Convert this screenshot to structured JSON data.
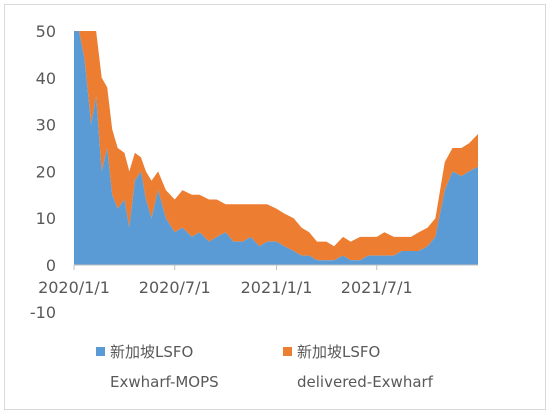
{
  "chart_data": {
    "type": "area",
    "stacked": true,
    "title": "",
    "xlabel": "",
    "ylabel": "",
    "ylim": [
      -10,
      50
    ],
    "yticks": [
      -10,
      0,
      10,
      20,
      30,
      40,
      50
    ],
    "xlim": [
      "2020-01-01",
      "2021-12-31"
    ],
    "xticks": [
      {
        "date": "2020-01-01",
        "label": "2020/1/1"
      },
      {
        "date": "2020-07-01",
        "label": "2020/7/1"
      },
      {
        "date": "2021-01-01",
        "label": "2021/1/1"
      },
      {
        "date": "2021-07-01",
        "label": "2021/7/1"
      }
    ],
    "grid": false,
    "legend": "bottom",
    "series": [
      {
        "name": "新加坡LSFO Exwharf-MOPS",
        "legend_lines": [
          "新加坡LSFO",
          "Exwharf-MOPS"
        ],
        "color": "#5B9BD5",
        "points": [
          [
            "2020-01-01",
            50
          ],
          [
            "2020-01-10",
            50
          ],
          [
            "2020-01-20",
            44
          ],
          [
            "2020-02-01",
            30
          ],
          [
            "2020-02-10",
            36
          ],
          [
            "2020-02-20",
            20
          ],
          [
            "2020-03-01",
            25
          ],
          [
            "2020-03-10",
            15
          ],
          [
            "2020-03-20",
            12
          ],
          [
            "2020-04-01",
            14
          ],
          [
            "2020-04-10",
            8
          ],
          [
            "2020-04-20",
            18
          ],
          [
            "2020-05-01",
            20
          ],
          [
            "2020-05-10",
            14
          ],
          [
            "2020-05-20",
            10
          ],
          [
            "2020-06-01",
            16
          ],
          [
            "2020-06-15",
            10
          ],
          [
            "2020-07-01",
            7
          ],
          [
            "2020-07-15",
            8
          ],
          [
            "2020-08-01",
            6
          ],
          [
            "2020-08-15",
            7
          ],
          [
            "2020-09-01",
            5
          ],
          [
            "2020-09-15",
            6
          ],
          [
            "2020-10-01",
            7
          ],
          [
            "2020-10-15",
            5
          ],
          [
            "2020-11-01",
            5
          ],
          [
            "2020-11-15",
            6
          ],
          [
            "2020-12-01",
            4
          ],
          [
            "2020-12-15",
            5
          ],
          [
            "2021-01-01",
            5
          ],
          [
            "2021-01-15",
            4
          ],
          [
            "2021-02-01",
            3
          ],
          [
            "2021-02-15",
            2
          ],
          [
            "2021-03-01",
            2
          ],
          [
            "2021-03-15",
            1
          ],
          [
            "2021-04-01",
            1
          ],
          [
            "2021-04-15",
            1
          ],
          [
            "2021-05-01",
            2
          ],
          [
            "2021-05-15",
            1
          ],
          [
            "2021-06-01",
            1
          ],
          [
            "2021-06-15",
            2
          ],
          [
            "2021-07-01",
            2
          ],
          [
            "2021-07-15",
            2
          ],
          [
            "2021-08-01",
            2
          ],
          [
            "2021-08-15",
            3
          ],
          [
            "2021-09-01",
            3
          ],
          [
            "2021-09-15",
            3
          ],
          [
            "2021-10-01",
            4
          ],
          [
            "2021-10-15",
            6
          ],
          [
            "2021-11-01",
            16
          ],
          [
            "2021-11-15",
            20
          ],
          [
            "2021-12-01",
            19
          ],
          [
            "2021-12-15",
            20
          ],
          [
            "2021-12-31",
            21
          ]
        ]
      },
      {
        "name": "新加坡LSFO delivered-Exwharf",
        "legend_lines": [
          "新加坡LSFO",
          "delivered-Exwharf"
        ],
        "color": "#ED7D31",
        "points": [
          [
            "2020-01-01",
            0
          ],
          [
            "2020-01-10",
            0
          ],
          [
            "2020-01-20",
            6
          ],
          [
            "2020-02-01",
            20
          ],
          [
            "2020-02-10",
            14
          ],
          [
            "2020-02-20",
            20
          ],
          [
            "2020-03-01",
            13
          ],
          [
            "2020-03-10",
            14
          ],
          [
            "2020-03-20",
            13
          ],
          [
            "2020-04-01",
            10
          ],
          [
            "2020-04-10",
            12
          ],
          [
            "2020-04-20",
            6
          ],
          [
            "2020-05-01",
            3
          ],
          [
            "2020-05-10",
            6
          ],
          [
            "2020-05-20",
            8
          ],
          [
            "2020-06-01",
            4
          ],
          [
            "2020-06-15",
            6
          ],
          [
            "2020-07-01",
            7
          ],
          [
            "2020-07-15",
            8
          ],
          [
            "2020-08-01",
            9
          ],
          [
            "2020-08-15",
            8
          ],
          [
            "2020-09-01",
            9
          ],
          [
            "2020-09-15",
            8
          ],
          [
            "2020-10-01",
            6
          ],
          [
            "2020-10-15",
            8
          ],
          [
            "2020-11-01",
            8
          ],
          [
            "2020-11-15",
            7
          ],
          [
            "2020-12-01",
            9
          ],
          [
            "2020-12-15",
            8
          ],
          [
            "2021-01-01",
            7
          ],
          [
            "2021-01-15",
            7
          ],
          [
            "2021-02-01",
            7
          ],
          [
            "2021-02-15",
            6
          ],
          [
            "2021-03-01",
            5
          ],
          [
            "2021-03-15",
            4
          ],
          [
            "2021-04-01",
            4
          ],
          [
            "2021-04-15",
            3
          ],
          [
            "2021-05-01",
            4
          ],
          [
            "2021-05-15",
            4
          ],
          [
            "2021-06-01",
            5
          ],
          [
            "2021-06-15",
            4
          ],
          [
            "2021-07-01",
            4
          ],
          [
            "2021-07-15",
            5
          ],
          [
            "2021-08-01",
            4
          ],
          [
            "2021-08-15",
            3
          ],
          [
            "2021-09-01",
            3
          ],
          [
            "2021-09-15",
            4
          ],
          [
            "2021-10-01",
            4
          ],
          [
            "2021-10-15",
            4
          ],
          [
            "2021-11-01",
            6
          ],
          [
            "2021-11-15",
            5
          ],
          [
            "2021-12-01",
            6
          ],
          [
            "2021-12-15",
            6
          ],
          [
            "2021-12-31",
            7
          ]
        ]
      }
    ]
  }
}
